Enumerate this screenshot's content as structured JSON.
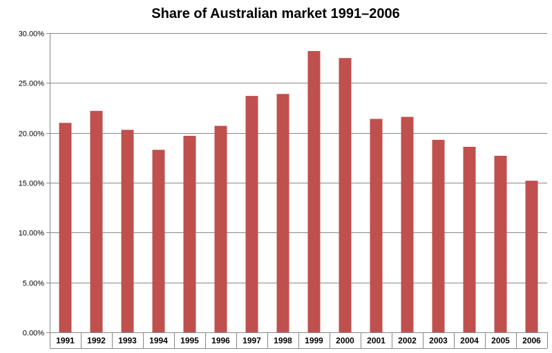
{
  "chart_data": {
    "type": "bar",
    "title": "Share of Australian market 1991–2006",
    "xlabel": "",
    "ylabel": "",
    "categories": [
      "1991",
      "1992",
      "1993",
      "1994",
      "1995",
      "1996",
      "1997",
      "1998",
      "1999",
      "2000",
      "2001",
      "2002",
      "2003",
      "2004",
      "2005",
      "2006"
    ],
    "series": [
      {
        "values": [
          21.0,
          22.2,
          20.3,
          18.3,
          19.7,
          20.7,
          23.7,
          23.9,
          28.2,
          27.5,
          21.4,
          21.6,
          19.3,
          18.6,
          17.7,
          15.2
        ]
      }
    ],
    "ylim": [
      0,
      30
    ],
    "yticks": [
      0,
      5,
      10,
      15,
      20,
      25,
      30
    ],
    "ytick_labels": [
      "0.00%",
      "5.00%",
      "10.00%",
      "15.00%",
      "20.00%",
      "25.00%",
      "30.00%"
    ],
    "grid": true,
    "legend": "none",
    "colors": {
      "bar": "#c0504d",
      "grid": "#868686",
      "axis": "#868686"
    }
  }
}
